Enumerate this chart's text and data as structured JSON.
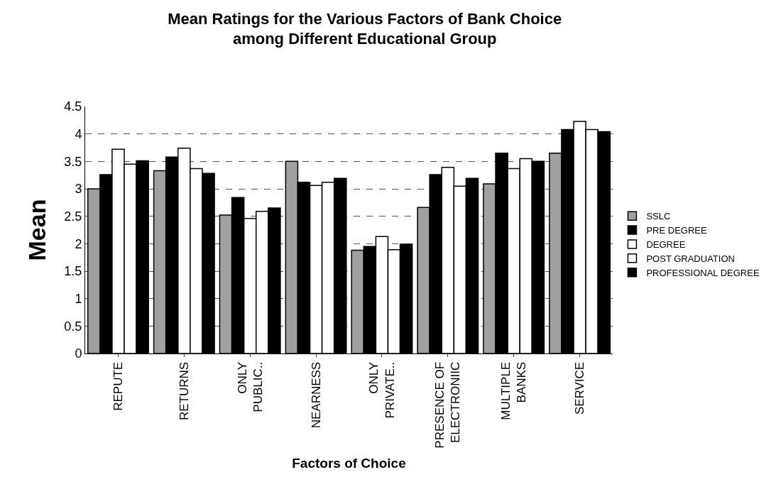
{
  "chart_data": {
    "type": "bar",
    "title": "Mean Ratings for the Various Factors of Bank Choice among Different Educational Group",
    "xlabel": "Factors of Choice",
    "ylabel": "Mean",
    "categories": [
      "REPUTE",
      "RETURNS",
      "ONLY PUBLIC..",
      "NEARNESS",
      "ONLY PRIVATE..",
      "PRESENCE OF ELECTRONIIC",
      "MULTIPLE BANKS",
      "SERVICE"
    ],
    "series": [
      {
        "name": "SSLC",
        "color": "#a0a0a0",
        "values": [
          3.0,
          3.33,
          2.52,
          3.5,
          1.88,
          2.66,
          3.09,
          3.65
        ]
      },
      {
        "name": "PRE DEGREE",
        "color": "#000000",
        "values": [
          3.26,
          3.58,
          2.84,
          3.12,
          1.95,
          3.26,
          3.65,
          4.08
        ]
      },
      {
        "name": "DEGREE",
        "color": "#ffffff",
        "values": [
          3.72,
          3.74,
          2.46,
          3.06,
          2.13,
          3.39,
          3.37,
          4.23
        ]
      },
      {
        "name": "POST GRADUATION",
        "color": "#ffffff",
        "values": [
          3.45,
          3.37,
          2.59,
          3.12,
          1.89,
          3.05,
          3.55,
          4.08
        ]
      },
      {
        "name": "PROFESSIONAL DEGREE",
        "color": "#000000",
        "values": [
          3.51,
          3.28,
          2.65,
          3.19,
          1.99,
          3.19,
          3.5,
          4.04
        ]
      }
    ],
    "ylim": [
      0,
      4.5
    ],
    "yticks": [
      0,
      0.5,
      1,
      1.5,
      2,
      2.5,
      3,
      3.5,
      4,
      4.5
    ],
    "grid": "y",
    "legend": "right"
  }
}
